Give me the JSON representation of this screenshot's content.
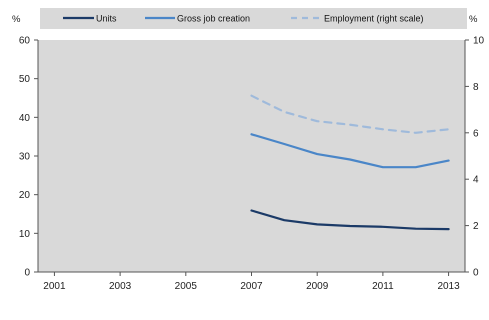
{
  "chart_data": {
    "type": "line",
    "title": "",
    "left_axis": {
      "unit_label": "%",
      "range": [
        0,
        60
      ],
      "ticks": [
        0,
        10,
        20,
        30,
        40,
        50,
        60
      ]
    },
    "right_axis": {
      "unit_label": "%",
      "range": [
        0,
        10
      ],
      "ticks": [
        0,
        2,
        4,
        6,
        8,
        10
      ]
    },
    "x_axis": {
      "range": [
        2000.5,
        2013.5
      ],
      "ticks": [
        2001,
        2003,
        2005,
        2007,
        2009,
        2011,
        2013
      ]
    },
    "grid": false,
    "plot_background": "#d9d9d9",
    "legend_position": "top",
    "x": [
      2007,
      2008,
      2009,
      2010,
      2011,
      2012,
      2013
    ],
    "series": [
      {
        "name": "Units",
        "axis": "left",
        "color": "#1b3a67",
        "dash": "solid",
        "values": [
          15.9,
          13.4,
          12.3,
          11.9,
          11.7,
          11.2,
          11.1
        ]
      },
      {
        "name": "Gross job creation",
        "axis": "left",
        "color": "#4a86c8",
        "dash": "solid",
        "values": [
          35.6,
          33.1,
          30.5,
          29.1,
          27.1,
          27.1,
          28.8
        ]
      },
      {
        "name": "Employment (right scale)",
        "axis": "right",
        "color": "#9fbadb",
        "dash": "dashed",
        "values": [
          7.6,
          6.9,
          6.5,
          6.35,
          6.15,
          6.0,
          6.15
        ]
      }
    ]
  },
  "labels": {
    "left_unit": "%",
    "right_unit": "%",
    "legend_units": "Units",
    "legend_gross": "Gross job creation",
    "legend_employment": "Employment (right scale)"
  }
}
